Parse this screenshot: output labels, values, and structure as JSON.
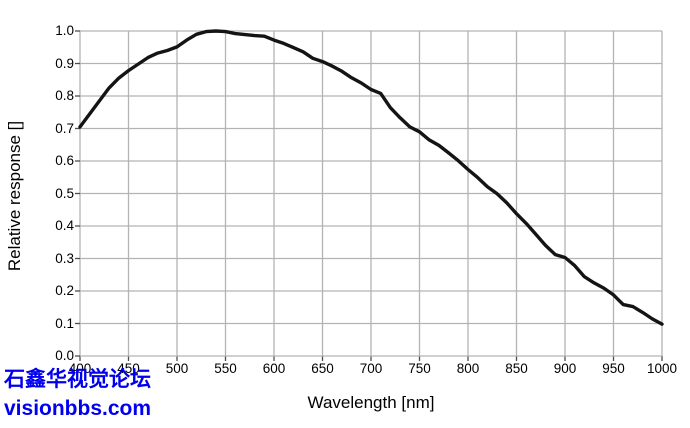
{
  "figure": {
    "background": "#ffffff",
    "grid_color": "#b3b3b3",
    "tick_color": "#4d4d4d",
    "curve_color": "#141414",
    "text_color": "#000000"
  },
  "watermark": {
    "line1": "石鑫华视觉论坛",
    "line2": "visionbbs.com",
    "color": "#0000ee"
  },
  "chart_data": {
    "type": "line",
    "title": "",
    "xlabel": "Wavelength [nm]",
    "ylabel": "Relative response []",
    "xlim": [
      400,
      1000
    ],
    "ylim": [
      0.0,
      1.0
    ],
    "x_tick_labels": [
      "400",
      "450",
      "500",
      "550",
      "600",
      "650",
      "700",
      "750",
      "800",
      "850",
      "900",
      "950",
      "1000"
    ],
    "y_tick_labels": [
      "1.0",
      "0.9",
      "0.8",
      "0.7",
      "0.6",
      "0.5",
      "0.4",
      "0.3",
      "0.2",
      "0.1",
      "0.0"
    ],
    "x_tick_step": 50,
    "y_tick_step": 0.1,
    "grid": true,
    "legend": false,
    "series": [
      {
        "name": "relative-response",
        "color": "#141414",
        "x": [
          400,
          410,
          420,
          430,
          440,
          450,
          460,
          470,
          480,
          490,
          500,
          510,
          520,
          530,
          540,
          550,
          560,
          570,
          580,
          590,
          600,
          610,
          620,
          630,
          640,
          650,
          660,
          670,
          680,
          690,
          700,
          710,
          720,
          730,
          740,
          750,
          760,
          770,
          780,
          790,
          800,
          810,
          820,
          830,
          840,
          850,
          860,
          870,
          880,
          890,
          900,
          910,
          920,
          930,
          940,
          950,
          960,
          970,
          980,
          990,
          1000
        ],
        "y": [
          0.705,
          0.745,
          0.785,
          0.825,
          0.855,
          0.878,
          0.898,
          0.918,
          0.932,
          0.94,
          0.951,
          0.972,
          0.99,
          0.998,
          1.0,
          0.998,
          0.992,
          0.989,
          0.986,
          0.984,
          0.972,
          0.962,
          0.949,
          0.936,
          0.916,
          0.906,
          0.892,
          0.876,
          0.856,
          0.84,
          0.82,
          0.808,
          0.764,
          0.733,
          0.705,
          0.69,
          0.665,
          0.648,
          0.625,
          0.601,
          0.574,
          0.549,
          0.521,
          0.499,
          0.471,
          0.438,
          0.408,
          0.374,
          0.34,
          0.312,
          0.303,
          0.278,
          0.244,
          0.225,
          0.209,
          0.188,
          0.158,
          0.152,
          0.134,
          0.114,
          0.098
        ]
      }
    ]
  }
}
